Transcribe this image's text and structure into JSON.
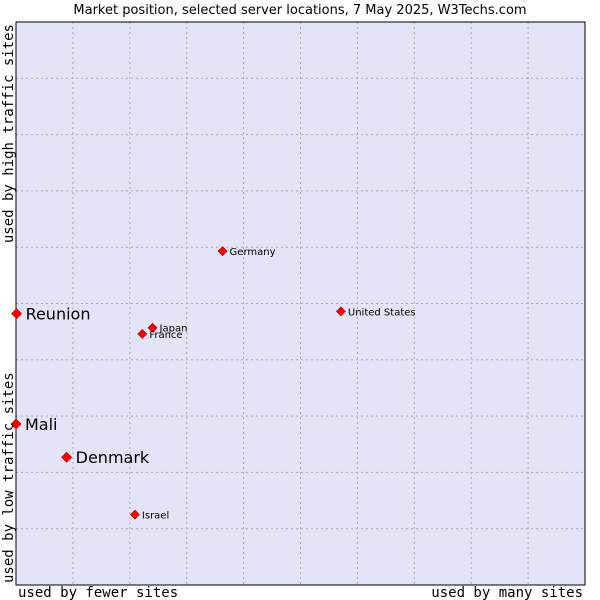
{
  "chart_data": {
    "type": "scatter",
    "title": "Market position, selected server locations, 7 May 2025, W3Techs.com",
    "x_axis": {
      "low_label": "used by fewer sites",
      "high_label": "used by many sites",
      "range": [
        0,
        100
      ]
    },
    "y_axis": {
      "low_label": "used by low traffic sites",
      "high_label": "used by high traffic sites",
      "range": [
        0,
        100
      ]
    },
    "grid": true,
    "colors": {
      "plot_background": "#e4e4f8",
      "grid": "#aaaaaa",
      "marker": "#ff0000",
      "marker_edge": "#aa0000",
      "border": "#000000"
    },
    "points": [
      {
        "name": "Germany",
        "x": 36.3,
        "y": 59.3,
        "size": "small"
      },
      {
        "name": "United States",
        "x": 57.1,
        "y": 48.6,
        "size": "small"
      },
      {
        "name": "Japan",
        "x": 24.0,
        "y": 45.7,
        "size": "small"
      },
      {
        "name": "France",
        "x": 22.2,
        "y": 44.6,
        "size": "small"
      },
      {
        "name": "Reunion",
        "x": 0.1,
        "y": 48.2,
        "size": "large"
      },
      {
        "name": "Mali",
        "x": 0.0,
        "y": 28.6,
        "size": "large"
      },
      {
        "name": "Denmark",
        "x": 8.9,
        "y": 22.7,
        "size": "large"
      },
      {
        "name": "Israel",
        "x": 20.9,
        "y": 12.5,
        "size": "small"
      }
    ]
  }
}
